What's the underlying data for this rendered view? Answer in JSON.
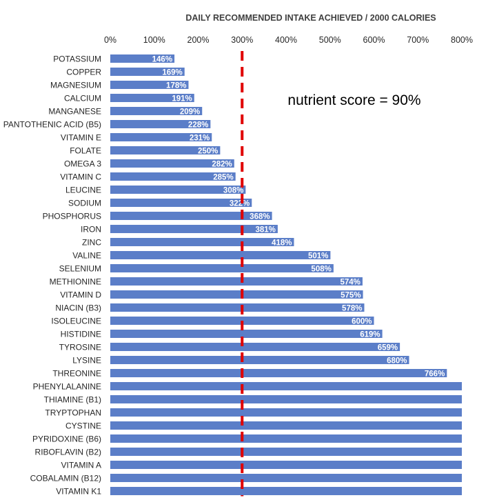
{
  "chart_data": {
    "type": "bar",
    "orientation": "horizontal",
    "title": "DAILY RECOMMENDED INTAKE ACHIEVED / 2000 CALORIES",
    "xlim": [
      0,
      800
    ],
    "x_ticks": [
      "0%",
      "100%",
      "200%",
      "300%",
      "400%",
      "500%",
      "600%",
      "700%",
      "800%"
    ],
    "annotation": "nutrient score = 90%",
    "reference_line": {
      "value": 300,
      "style": "dashed",
      "color": "#e00000"
    },
    "bar_color": "#5b7ec8",
    "categories": [
      "POTASSIUM",
      "COPPER",
      "MAGNESIUM",
      "CALCIUM",
      "MANGANESE",
      "PANTOTHENIC ACID (B5)",
      "VITAMIN E",
      "FOLATE",
      "OMEGA 3",
      "VITAMIN C",
      "LEUCINE",
      "SODIUM",
      "PHOSPHORUS",
      "IRON",
      "ZINC",
      "VALINE",
      "SELENIUM",
      "METHIONINE",
      "VITAMIN D",
      "NIACIN (B3)",
      "ISOLEUCINE",
      "HISTIDINE",
      "TYROSINE",
      "LYSINE",
      "THREONINE",
      "PHENYLALANINE",
      "THIAMINE (B1)",
      "TRYPTOPHAN",
      "CYSTINE",
      "PYRIDOXINE (B6)",
      "RIBOFLAVIN (B2)",
      "VITAMIN A",
      "COBALAMIN (B12)",
      "VITAMIN K1"
    ],
    "values": [
      146,
      169,
      178,
      191,
      209,
      228,
      231,
      250,
      282,
      285,
      308,
      322,
      368,
      381,
      418,
      501,
      508,
      574,
      575,
      578,
      600,
      619,
      659,
      680,
      766,
      800,
      800,
      800,
      800,
      800,
      800,
      800,
      800,
      800
    ],
    "data_labels": [
      "146%",
      "169%",
      "178%",
      "191%",
      "209%",
      "228%",
      "231%",
      "250%",
      "282%",
      "285%",
      "308%",
      "322%",
      "368%",
      "381%",
      "418%",
      "501%",
      "508%",
      "574%",
      "575%",
      "578%",
      "600%",
      "619%",
      "659%",
      "680%",
      "766%",
      "",
      "",
      "",
      "",
      "",
      "",
      "",
      "",
      ""
    ]
  }
}
